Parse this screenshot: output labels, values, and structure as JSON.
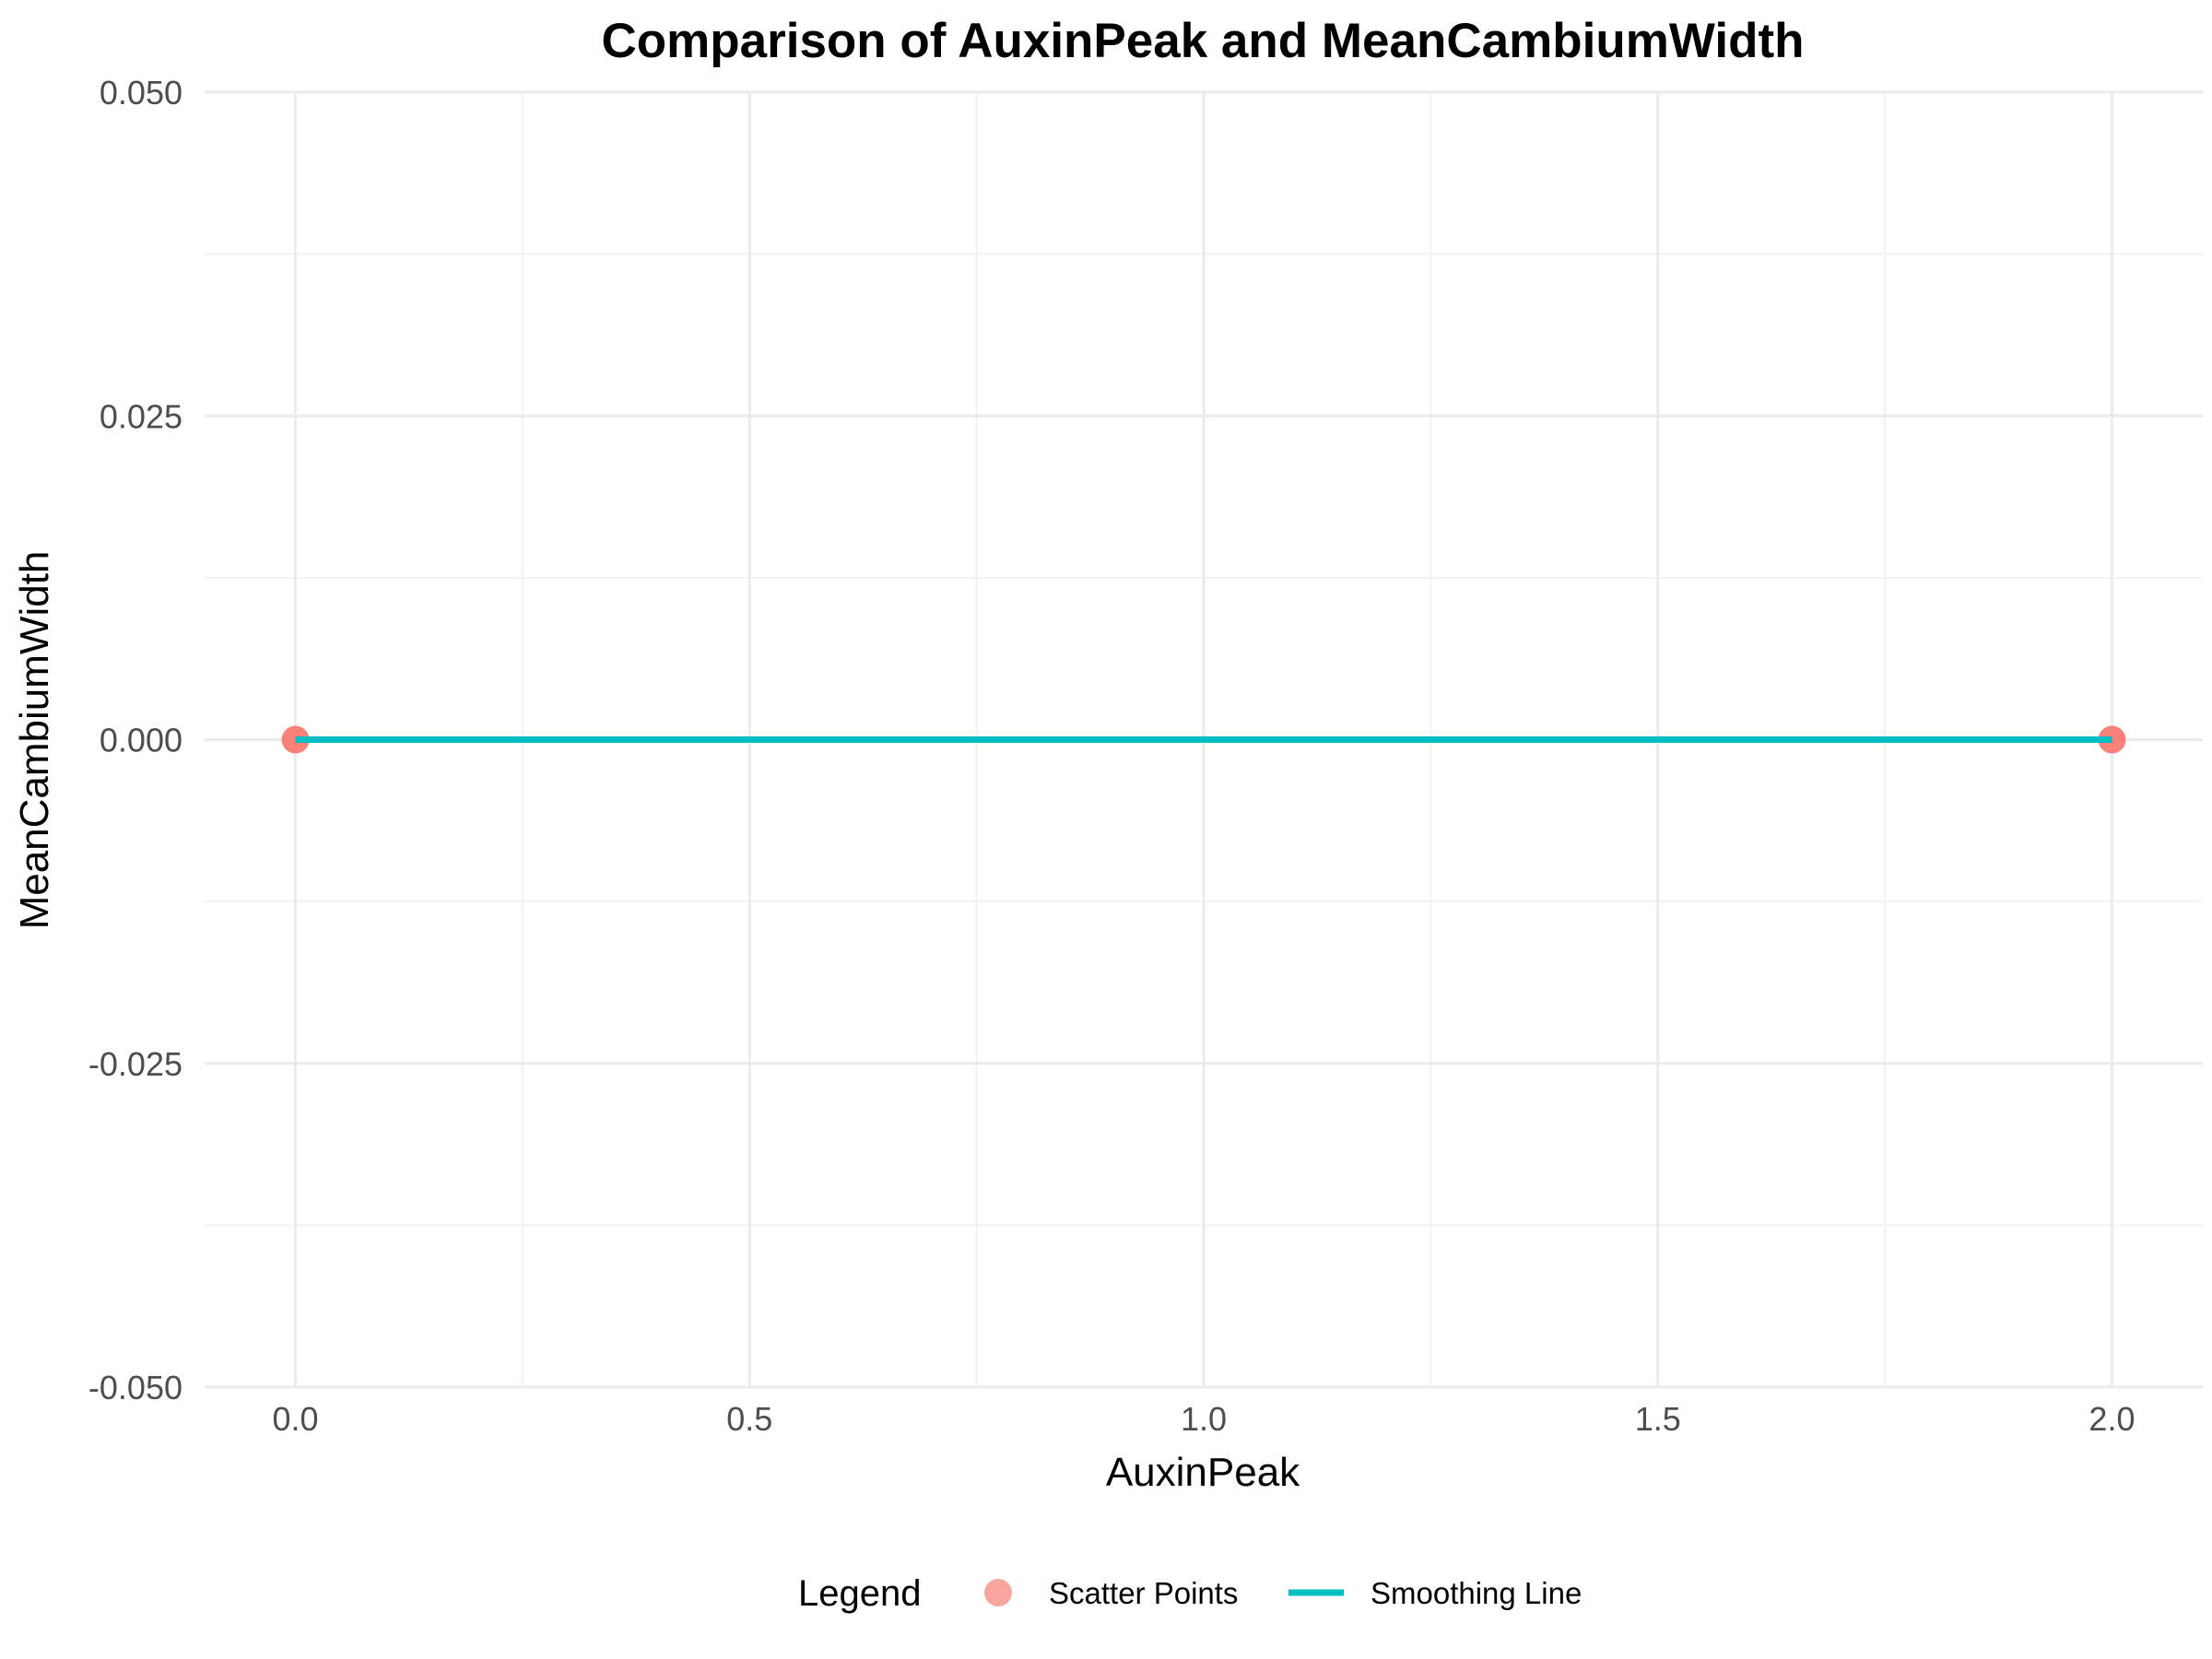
{
  "chart_data": {
    "type": "scatter",
    "title": "Comparison of AuxinPeak and MeanCambiumWidth",
    "xlabel": "AuxinPeak",
    "ylabel": "MeanCambiumWidth",
    "xlim": [
      -0.1,
      2.1
    ],
    "ylim": [
      -0.05,
      0.05
    ],
    "x_ticks": [
      0.0,
      0.5,
      1.0,
      1.5,
      2.0
    ],
    "x_tick_labels": [
      "0.0",
      "0.5",
      "1.0",
      "1.5",
      "2.0"
    ],
    "y_ticks": [
      -0.05,
      -0.025,
      0.0,
      0.025,
      0.05
    ],
    "y_tick_labels": [
      "-0.050",
      "-0.025",
      "0.000",
      "0.025",
      "0.050"
    ],
    "grid": true,
    "series": [
      {
        "name": "Scatter Points",
        "kind": "points",
        "color": "#F8766D",
        "x": [
          0,
          2
        ],
        "y": [
          0,
          0
        ]
      },
      {
        "name": "Smoothing Line",
        "kind": "line",
        "color": "#00BFC4",
        "x": [
          0,
          2
        ],
        "y": [
          0,
          0
        ]
      }
    ],
    "legend": {
      "title": "Legend",
      "position": "bottom"
    }
  }
}
